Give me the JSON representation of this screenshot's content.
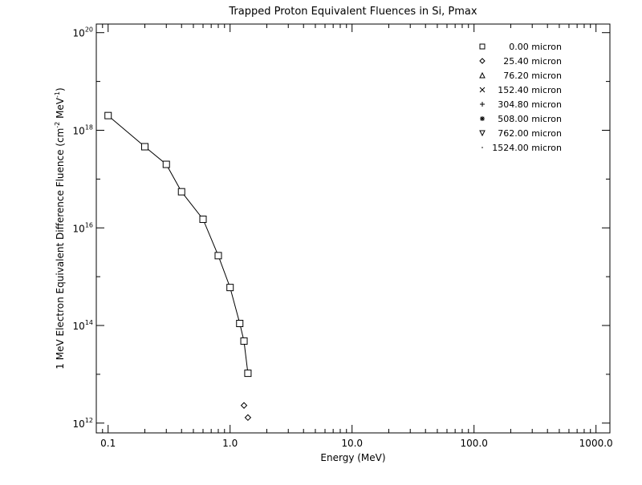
{
  "chart_data": {
    "type": "line",
    "title": "Trapped Proton Equivalent Fluences in Si, Pmax",
    "xlabel": "Energy (MeV)",
    "ylabel": {
      "prefix": "1 MeV Electron Equivalent Difference Fluence (cm",
      "exp1": "-2",
      "middle": " MeV",
      "exp2": "-1",
      "suffix": ")"
    },
    "xscale": "log",
    "yscale": "log",
    "xlim": [
      0.08,
      1300
    ],
    "ylim": [
      630000000000.0,
      1.5e+20
    ],
    "x_ticks": [
      {
        "value": 0.1,
        "label": "0.1"
      },
      {
        "value": 1,
        "label": "1.0"
      },
      {
        "value": 10,
        "label": "10.0"
      },
      {
        "value": 100,
        "label": "100.0"
      },
      {
        "value": 1000,
        "label": "1000.0"
      }
    ],
    "y_ticks": [
      {
        "value": 1000000000000.0,
        "base": "10",
        "exp": "12"
      },
      {
        "value": 100000000000000.0,
        "base": "10",
        "exp": "14"
      },
      {
        "value": 1e+16,
        "base": "10",
        "exp": "16"
      },
      {
        "value": 1e+18,
        "base": "10",
        "exp": "18"
      },
      {
        "value": 1e+20,
        "base": "10",
        "exp": "20"
      }
    ],
    "legend_position": "top-right",
    "series": [
      {
        "name": "0.00 micron",
        "marker": "square",
        "points": [
          {
            "x": 0.1,
            "y": 2e+18
          },
          {
            "x": 0.2,
            "y": 4.6e+17
          },
          {
            "x": 0.3,
            "y": 2e+17
          },
          {
            "x": 0.4,
            "y": 5.5e+16
          },
          {
            "x": 0.6,
            "y": 1.5e+16
          },
          {
            "x": 0.8,
            "y": 2700000000000000.0
          },
          {
            "x": 1.0,
            "y": 600000000000000.0
          },
          {
            "x": 1.2,
            "y": 110000000000000.0
          },
          {
            "x": 1.3,
            "y": 48000000000000.0
          },
          {
            "x": 1.4,
            "y": 10500000000000.0
          }
        ]
      },
      {
        "name": "25.40 micron",
        "marker": "diamond",
        "points": [
          {
            "x": 1.3,
            "y": 2300000000000.0
          },
          {
            "x": 1.4,
            "y": 1300000000000.0
          }
        ]
      },
      {
        "name": "76.20 micron",
        "marker": "triangle",
        "points": []
      },
      {
        "name": "152.40 micron",
        "marker": "x",
        "points": []
      },
      {
        "name": "304.80 micron",
        "marker": "plus",
        "points": []
      },
      {
        "name": "508.00 micron",
        "marker": "asterisk",
        "points": []
      },
      {
        "name": "762.00 micron",
        "marker": "triangle-down",
        "points": []
      },
      {
        "name": "1524.00 micron",
        "marker": "dot",
        "points": []
      }
    ]
  },
  "colors": {
    "background": "#ffffff",
    "foreground": "#000000"
  }
}
